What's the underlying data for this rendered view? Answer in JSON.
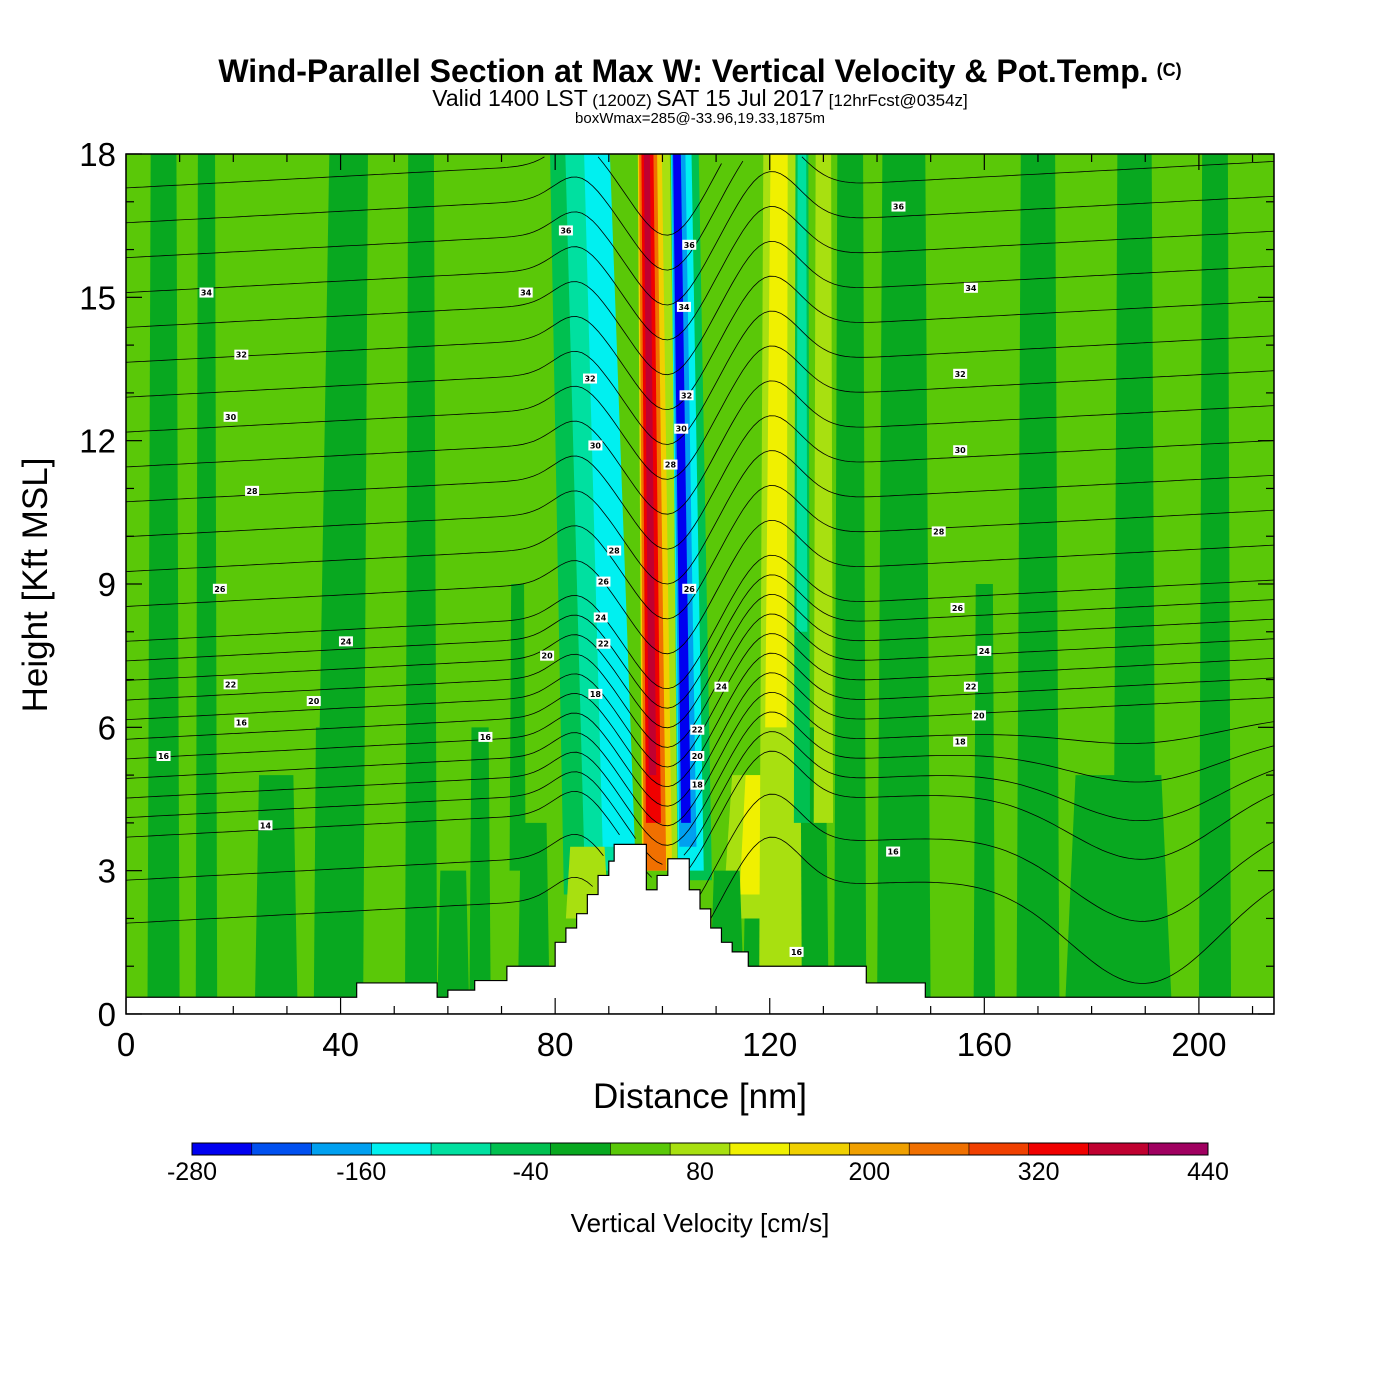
{
  "chart_data": {
    "type": "heatmap",
    "title": "Wind-Parallel Section at Max W: Vertical Velocity & Pot.Temp.",
    "title_mark": "(C)",
    "subtitle_parts": [
      "Valid 1400 LST",
      "(1200Z)",
      "SAT 15 Jul 2017",
      "[12hrFcst@0354z]"
    ],
    "subtitle2": "boxWmax=285@-33.96,19.33,1875m",
    "xlabel": "Distance [nm]",
    "ylabel": "Height [Kft MSL]",
    "xlim": [
      0,
      214
    ],
    "ylim": [
      0,
      18
    ],
    "xticks": [
      0,
      40,
      80,
      120,
      160,
      200
    ],
    "yticks": [
      0,
      3,
      6,
      9,
      12,
      15,
      18
    ],
    "colorbar": {
      "title": "Vertical Velocity [cm/s]",
      "levels": [
        -280,
        -240,
        -200,
        -160,
        -120,
        -80,
        -40,
        0,
        40,
        80,
        120,
        160,
        200,
        240,
        280,
        320,
        360,
        400,
        440
      ],
      "tick_labels": [
        "-280",
        "-160",
        "-40",
        "80",
        "200",
        "320",
        "440"
      ],
      "tick_values": [
        -280,
        -160,
        -40,
        80,
        200,
        320,
        440
      ],
      "colors": [
        "#0000f0",
        "#0050f0",
        "#00a0f0",
        "#00f0f0",
        "#00e0a0",
        "#00c050",
        "#08a820",
        "#5ac808",
        "#a8e010",
        "#f0f000",
        "#f0d000",
        "#f0a000",
        "#f07000",
        "#f04000",
        "#f00000",
        "#c00030",
        "#a00060"
      ]
    },
    "terrain": [
      [
        0,
        0.35
      ],
      [
        43,
        0.35
      ],
      [
        43,
        0.65
      ],
      [
        58,
        0.65
      ],
      [
        58,
        0.35
      ],
      [
        60,
        0.35
      ],
      [
        60,
        0.5
      ],
      [
        65,
        0.5
      ],
      [
        65,
        0.7
      ],
      [
        71,
        0.7
      ],
      [
        71,
        1.0
      ],
      [
        80,
        1.0
      ],
      [
        80,
        1.5
      ],
      [
        82,
        1.5
      ],
      [
        82,
        1.8
      ],
      [
        84,
        1.8
      ],
      [
        84,
        2.1
      ],
      [
        86,
        2.1
      ],
      [
        86,
        2.5
      ],
      [
        88,
        2.5
      ],
      [
        88,
        2.9
      ],
      [
        90,
        2.9
      ],
      [
        90,
        3.2
      ],
      [
        91,
        3.2
      ],
      [
        91,
        3.55
      ],
      [
        97,
        3.55
      ],
      [
        97,
        2.6
      ],
      [
        99,
        2.6
      ],
      [
        99,
        2.9
      ],
      [
        101,
        2.9
      ],
      [
        101,
        3.25
      ],
      [
        105,
        3.25
      ],
      [
        105,
        2.6
      ],
      [
        107,
        2.6
      ],
      [
        107,
        2.2
      ],
      [
        109,
        2.2
      ],
      [
        109,
        1.8
      ],
      [
        111,
        1.8
      ],
      [
        111,
        1.5
      ],
      [
        113,
        1.5
      ],
      [
        113,
        1.3
      ],
      [
        116,
        1.3
      ],
      [
        116,
        1.0
      ],
      [
        138,
        1.0
      ],
      [
        138,
        0.65
      ],
      [
        149,
        0.65
      ],
      [
        149,
        0.35
      ],
      [
        214,
        0.35
      ]
    ],
    "theta_contours": [
      {
        "value": 14,
        "label_at": [
          26,
          3.95
        ]
      },
      {
        "value": 16,
        "label_at": [
          21.5,
          6.1
        ]
      },
      {
        "value": 16,
        "label_at": [
          67,
          5.8
        ]
      },
      {
        "value": 16,
        "label_at": [
          7,
          5.4
        ]
      },
      {
        "value": 16,
        "label_at": [
          143,
          3.4
        ]
      },
      {
        "value": 16,
        "label_at": [
          125,
          1.3
        ]
      },
      {
        "value": 18,
        "label_at": [
          87.5,
          6.7
        ]
      },
      {
        "value": 18,
        "label_at": [
          106.5,
          4.8
        ]
      },
      {
        "value": 18,
        "label_at": [
          155.5,
          5.7
        ]
      },
      {
        "value": 20,
        "label_at": [
          35,
          6.55
        ]
      },
      {
        "value": 20,
        "label_at": [
          78.5,
          7.5
        ]
      },
      {
        "value": 20,
        "label_at": [
          106.5,
          5.4
        ]
      },
      {
        "value": 20,
        "label_at": [
          159,
          6.25
        ]
      },
      {
        "value": 22,
        "label_at": [
          19.5,
          6.9
        ]
      },
      {
        "value": 22,
        "label_at": [
          89,
          7.75
        ]
      },
      {
        "value": 22,
        "label_at": [
          106.5,
          5.95
        ]
      },
      {
        "value": 22,
        "label_at": [
          157.5,
          6.85
        ]
      },
      {
        "value": 24,
        "label_at": [
          41,
          7.8
        ]
      },
      {
        "value": 24,
        "label_at": [
          88.5,
          8.3
        ]
      },
      {
        "value": 24,
        "label_at": [
          111,
          6.85
        ]
      },
      {
        "value": 24,
        "label_at": [
          160,
          7.6
        ]
      },
      {
        "value": 26,
        "label_at": [
          17.5,
          8.9
        ]
      },
      {
        "value": 26,
        "label_at": [
          89,
          9.05
        ]
      },
      {
        "value": 26,
        "label_at": [
          105,
          8.9
        ]
      },
      {
        "value": 26,
        "label_at": [
          155,
          8.5
        ]
      },
      {
        "value": 28,
        "label_at": [
          23.5,
          10.95
        ]
      },
      {
        "value": 28,
        "label_at": [
          91,
          9.7
        ]
      },
      {
        "value": 28,
        "label_at": [
          101.5,
          11.5
        ]
      },
      {
        "value": 28,
        "label_at": [
          151.5,
          10.1
        ]
      },
      {
        "value": 30,
        "label_at": [
          19.5,
          12.5
        ]
      },
      {
        "value": 30,
        "label_at": [
          87.5,
          11.9
        ]
      },
      {
        "value": 30,
        "label_at": [
          103.5,
          12.25
        ]
      },
      {
        "value": 30,
        "label_at": [
          155.5,
          11.8
        ]
      },
      {
        "value": 32,
        "label_at": [
          21.5,
          13.8
        ]
      },
      {
        "value": 32,
        "label_at": [
          86.5,
          13.3
        ]
      },
      {
        "value": 32,
        "label_at": [
          104.5,
          12.95
        ]
      },
      {
        "value": 32,
        "label_at": [
          155.5,
          13.4
        ]
      },
      {
        "value": 34,
        "label_at": [
          15,
          15.1
        ]
      },
      {
        "value": 34,
        "label_at": [
          74.5,
          15.1
        ]
      },
      {
        "value": 34,
        "label_at": [
          104,
          14.8
        ]
      },
      {
        "value": 34,
        "label_at": [
          157.5,
          15.2
        ]
      },
      {
        "value": 36,
        "label_at": [
          82,
          16.4
        ]
      },
      {
        "value": 36,
        "label_at": [
          105,
          16.1
        ]
      },
      {
        "value": 36,
        "label_at": [
          144,
          16.9
        ]
      }
    ]
  }
}
